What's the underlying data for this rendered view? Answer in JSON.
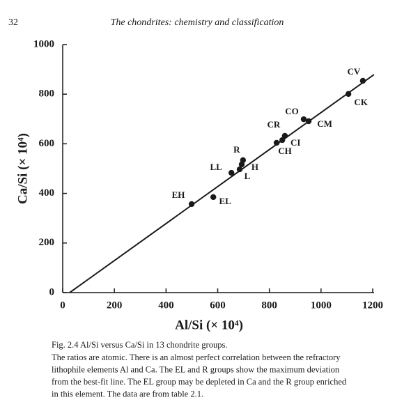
{
  "page_number": "32",
  "running_head": "The chondrites: chemistry and classification",
  "chart_data": {
    "type": "scatter",
    "xlabel": "Al/Si (× 10⁴)",
    "ylabel": "Ca/Si (× 10⁴)",
    "labels": [
      "EH",
      "EL",
      "LL",
      "L",
      "H",
      "R",
      "CH",
      "CI",
      "CR",
      "CO",
      "CM",
      "CK",
      "CV"
    ],
    "x": [
      499,
      583,
      653,
      685,
      693,
      698,
      828,
      850,
      860,
      933,
      952,
      1106,
      1162
    ],
    "y": [
      357,
      385,
      483,
      497,
      517,
      534,
      604,
      615,
      632,
      699,
      691,
      801,
      854
    ],
    "color": "#1a1a1a",
    "fit_line": {
      "x": [
        27,
        1205
      ],
      "y": [
        0,
        879
      ]
    },
    "xlim": [
      0,
      1200
    ],
    "ylim": [
      0,
      1000
    ],
    "xticks": [
      0,
      200,
      400,
      600,
      800,
      1000,
      1200
    ],
    "yticks": [
      0,
      200,
      400,
      600,
      800,
      1000
    ]
  },
  "caption": {
    "title": "Fig. 2.4  Al/Si versus Ca/Si in 13 chondrite groups.",
    "lines": [
      "The ratios are atomic. There is an almost perfect correlation between the refractory",
      "lithophile elements Al and Ca. The EL and R groups show the maximum deviation",
      "from the best-fit line. The EL group may be depleted in Ca and the R group enriched",
      "in this element. The data are from table 2.1."
    ]
  }
}
